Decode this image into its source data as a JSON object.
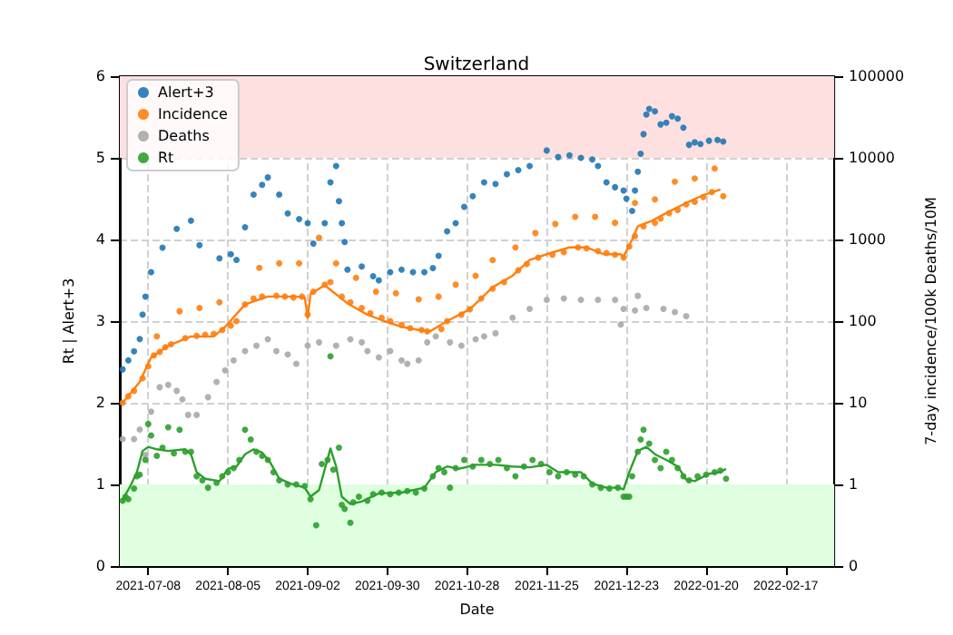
{
  "chart_data": {
    "type": "scatter",
    "title": "Switzerland",
    "xlabel": "Date",
    "ylabel": "Rt | Alert+3",
    "y2label": "7-day incidence/100k Deaths/10M",
    "xlim": [
      "2021-06-28",
      "2022-03-06"
    ],
    "xticks": [
      "2021-07-08",
      "2021-08-05",
      "2021-09-02",
      "2021-09-30",
      "2021-10-28",
      "2021-11-25",
      "2021-12-23",
      "2022-01-20",
      "2022-02-17"
    ],
    "ylim": [
      0,
      6
    ],
    "yticks": [
      0,
      1,
      2,
      3,
      4,
      5,
      6
    ],
    "y2lim": [
      0.1,
      100000
    ],
    "y2ticks": [
      {
        "value": 0.1,
        "label": "0"
      },
      1,
      10,
      100,
      1000,
      10000,
      100000
    ],
    "log": "y2",
    "grid": true,
    "legend": "top left",
    "marker": "circle",
    "bands": [
      {
        "axis": "y",
        "from": 5,
        "to": 6,
        "color": "#ffe0e0"
      },
      {
        "axis": "y",
        "from": 0,
        "to": 1,
        "color": "#e0ffe0"
      }
    ],
    "series": [
      {
        "name": "Alert+3",
        "color": "#1f77b4",
        "axis": "y",
        "x": [
          "2021-06-29",
          "2021-07-01",
          "2021-07-03",
          "2021-07-05",
          "2021-07-06",
          "2021-07-07",
          "2021-07-09",
          "2021-07-13",
          "2021-07-18",
          "2021-07-23",
          "2021-07-26",
          "2021-08-02",
          "2021-08-06",
          "2021-08-08",
          "2021-08-11",
          "2021-08-14",
          "2021-08-17",
          "2021-08-19",
          "2021-08-23",
          "2021-08-26",
          "2021-08-30",
          "2021-09-02",
          "2021-09-04",
          "2021-09-08",
          "2021-09-10",
          "2021-09-12",
          "2021-09-13",
          "2021-09-14",
          "2021-09-15",
          "2021-09-16",
          "2021-09-21",
          "2021-09-25",
          "2021-09-27",
          "2021-10-01",
          "2021-10-05",
          "2021-10-09",
          "2021-10-13",
          "2021-10-16",
          "2021-10-18",
          "2021-10-21",
          "2021-10-24",
          "2021-10-27",
          "2021-10-30",
          "2021-11-03",
          "2021-11-07",
          "2021-11-11",
          "2021-11-15",
          "2021-11-19",
          "2021-11-25",
          "2021-11-29",
          "2021-12-03",
          "2021-12-07",
          "2021-12-11",
          "2021-12-13",
          "2021-12-16",
          "2021-12-19",
          "2021-12-22",
          "2021-12-23",
          "2021-12-25",
          "2021-12-26",
          "2021-12-27",
          "2021-12-28",
          "2021-12-29",
          "2021-12-30",
          "2021-12-31",
          "2022-01-02",
          "2022-01-04",
          "2022-01-06",
          "2022-01-08",
          "2022-01-10",
          "2022-01-12",
          "2022-01-14",
          "2022-01-16",
          "2022-01-18",
          "2022-01-21",
          "2022-01-24",
          "2022-01-26"
        ],
        "values": [
          2.41,
          2.52,
          2.63,
          2.78,
          3.08,
          3.3,
          3.6,
          3.9,
          4.13,
          4.23,
          3.93,
          3.77,
          3.82,
          3.75,
          4.15,
          4.55,
          4.67,
          4.76,
          4.55,
          4.32,
          4.25,
          4.2,
          3.95,
          4.2,
          4.7,
          4.9,
          4.47,
          4.2,
          3.97,
          3.63,
          3.67,
          3.55,
          3.5,
          3.6,
          3.63,
          3.6,
          3.6,
          3.65,
          3.8,
          4.1,
          4.2,
          4.4,
          4.53,
          4.7,
          4.68,
          4.8,
          4.85,
          4.9,
          5.09,
          5.01,
          5.03,
          5.0,
          4.98,
          4.9,
          4.7,
          4.64,
          4.6,
          4.5,
          4.35,
          4.6,
          4.83,
          5.05,
          5.29,
          5.53,
          5.6,
          5.57,
          5.41,
          5.43,
          5.51,
          5.48,
          5.37,
          5.16,
          5.19,
          5.17,
          5.21,
          5.22,
          5.2
        ]
      },
      {
        "name": "Incidence",
        "color": "#ff7f0e",
        "axis": "y2",
        "x": [
          "2021-06-29",
          "2021-07-01",
          "2021-07-03",
          "2021-07-06",
          "2021-07-08",
          "2021-07-10",
          "2021-07-12",
          "2021-07-14",
          "2021-07-16",
          "2021-07-21",
          "2021-07-25",
          "2021-07-28",
          "2021-07-31",
          "2021-08-03",
          "2021-08-06",
          "2021-08-08",
          "2021-08-11",
          "2021-08-14",
          "2021-08-17",
          "2021-08-22",
          "2021-08-25",
          "2021-08-28",
          "2021-08-31",
          "2021-09-02",
          "2021-09-04",
          "2021-09-08",
          "2021-09-10",
          "2021-09-14",
          "2021-09-17",
          "2021-09-21",
          "2021-09-24",
          "2021-09-28",
          "2021-10-01",
          "2021-10-05",
          "2021-10-08",
          "2021-10-12",
          "2021-10-14",
          "2021-10-19",
          "2021-10-21",
          "2021-10-26",
          "2021-10-29",
          "2021-11-02",
          "2021-11-06",
          "2021-11-10",
          "2021-11-15",
          "2021-11-18",
          "2021-11-22",
          "2021-11-27",
          "2021-12-01",
          "2021-12-06",
          "2021-12-09",
          "2021-12-13",
          "2021-12-16",
          "2021-12-19",
          "2021-12-22",
          "2021-12-24",
          "2021-12-26",
          "2021-12-29",
          "2022-01-02",
          "2022-01-04",
          "2022-01-07",
          "2022-01-10",
          "2022-01-13",
          "2022-01-16",
          "2022-01-19",
          "2022-01-22",
          "2022-01-26",
          "2021-07-11",
          "2021-07-19",
          "2021-07-26",
          "2021-08-02",
          "2021-08-16",
          "2021-08-23",
          "2021-08-30",
          "2021-09-06",
          "2021-09-12",
          "2021-09-19",
          "2021-09-26",
          "2021-10-03",
          "2021-10-11",
          "2021-10-18",
          "2021-10-24",
          "2021-10-31",
          "2021-11-06",
          "2021-11-14",
          "2021-11-21",
          "2021-11-28",
          "2021-12-05",
          "2021-12-12",
          "2021-12-19",
          "2021-12-26",
          "2022-01-02",
          "2022-01-09",
          "2022-01-16",
          "2022-01-23"
        ],
        "values": [
          10,
          12,
          14,
          20,
          28,
          38,
          42,
          48,
          52,
          62,
          66,
          68,
          70,
          78,
          88,
          100,
          160,
          190,
          200,
          205,
          200,
          195,
          200,
          120,
          230,
          280,
          300,
          200,
          170,
          145,
          125,
          110,
          100,
          90,
          82,
          78,
          75,
          80,
          100,
          120,
          140,
          190,
          250,
          300,
          420,
          500,
          600,
          650,
          700,
          800,
          780,
          720,
          680,
          650,
          600,
          820,
          1100,
          1450,
          1600,
          1800,
          2100,
          2300,
          2700,
          2900,
          3300,
          3800,
          3400,
          65,
          132,
          145,
          170,
          450,
          510,
          510,
          1050,
          510,
          340,
          230,
          220,
          185,
          200,
          280,
          360,
          560,
          800,
          1200,
          1550,
          1900,
          1900,
          1600,
          2800,
          3100,
          5100,
          5600,
          7400
        ]
      },
      {
        "name": "Deaths",
        "color": "#a9a9a9",
        "axis": "y2",
        "x": [
          "2021-06-29",
          "2021-07-03",
          "2021-07-05",
          "2021-07-07",
          "2021-07-09",
          "2021-07-12",
          "2021-07-15",
          "2021-07-18",
          "2021-07-20",
          "2021-07-22",
          "2021-07-25",
          "2021-07-29",
          "2021-08-01",
          "2021-08-04",
          "2021-08-07",
          "2021-08-11",
          "2021-08-15",
          "2021-08-19",
          "2021-08-22",
          "2021-08-26",
          "2021-08-29",
          "2021-09-02",
          "2021-09-06",
          "2021-09-12",
          "2021-09-17",
          "2021-09-21",
          "2021-09-23",
          "2021-09-27",
          "2021-10-01",
          "2021-10-05",
          "2021-10-07",
          "2021-10-11",
          "2021-10-14",
          "2021-10-17",
          "2021-10-22",
          "2021-10-26",
          "2021-10-31",
          "2021-11-03",
          "2021-11-07",
          "2021-11-13",
          "2021-11-19",
          "2021-11-25",
          "2021-12-01",
          "2021-12-07",
          "2021-12-13",
          "2021-12-19",
          "2021-12-21",
          "2021-12-22",
          "2021-12-26",
          "2021-12-27",
          "2021-12-30",
          "2022-01-05",
          "2022-01-09",
          "2022-01-13"
        ],
        "values": [
          3.6,
          3.6,
          4.7,
          2.3,
          7.8,
          15.5,
          16.6,
          14,
          11,
          7.1,
          7.1,
          11.7,
          18,
          25,
          33,
          43,
          50,
          60,
          43,
          39,
          30,
          50,
          55,
          50,
          60,
          55,
          43,
          36,
          43,
          33,
          30,
          33,
          55,
          65,
          55,
          50,
          60,
          65,
          71,
          110,
          141,
          182,
          190,
          182,
          182,
          182,
          91,
          141,
          135,
          204,
          145,
          141,
          129,
          115
        ]
      },
      {
        "name": "Rt",
        "color": "#2ca02c",
        "axis": "y",
        "x": [
          "2021-06-29",
          "2021-06-30",
          "2021-07-01",
          "2021-07-03",
          "2021-07-04",
          "2021-07-05",
          "2021-07-07",
          "2021-07-08",
          "2021-07-09",
          "2021-07-11",
          "2021-07-13",
          "2021-07-15",
          "2021-07-17",
          "2021-07-19",
          "2021-07-21",
          "2021-07-23",
          "2021-07-25",
          "2021-07-27",
          "2021-07-29",
          "2021-08-01",
          "2021-08-03",
          "2021-08-05",
          "2021-08-07",
          "2021-08-09",
          "2021-08-11",
          "2021-08-13",
          "2021-08-15",
          "2021-08-17",
          "2021-08-19",
          "2021-08-21",
          "2021-08-23",
          "2021-08-26",
          "2021-08-29",
          "2021-09-01",
          "2021-09-03",
          "2021-09-05",
          "2021-09-07",
          "2021-09-09",
          "2021-09-10",
          "2021-09-11",
          "2021-09-13",
          "2021-09-14",
          "2021-09-15",
          "2021-09-17",
          "2021-09-18",
          "2021-09-20",
          "2021-09-23",
          "2021-09-25",
          "2021-09-28",
          "2021-10-01",
          "2021-10-04",
          "2021-10-07",
          "2021-10-10",
          "2021-10-13",
          "2021-10-16",
          "2021-10-18",
          "2021-10-20",
          "2021-10-22",
          "2021-10-24",
          "2021-10-27",
          "2021-10-30",
          "2021-11-02",
          "2021-11-05",
          "2021-11-08",
          "2021-11-11",
          "2021-11-14",
          "2021-11-17",
          "2021-11-20",
          "2021-11-23",
          "2021-11-26",
          "2021-11-29",
          "2021-12-02",
          "2021-12-05",
          "2021-12-08",
          "2021-12-11",
          "2021-12-14",
          "2021-12-17",
          "2021-12-20",
          "2021-12-22",
          "2021-12-23",
          "2021-12-24",
          "2021-12-25",
          "2021-12-27",
          "2021-12-28",
          "2021-12-29",
          "2021-12-31",
          "2022-01-02",
          "2022-01-04",
          "2022-01-06",
          "2022-01-08",
          "2022-01-10",
          "2022-01-12",
          "2022-01-14",
          "2022-01-17",
          "2022-01-20",
          "2022-01-23",
          "2022-01-25",
          "2022-01-27"
        ],
        "values": [
          0.8,
          0.85,
          0.82,
          0.95,
          1.1,
          1.12,
          1.3,
          1.74,
          1.6,
          1.35,
          1.45,
          1.7,
          1.38,
          1.67,
          1.4,
          1.4,
          1.1,
          1.05,
          0.96,
          1.02,
          1.1,
          1.15,
          1.2,
          1.3,
          1.67,
          1.55,
          1.4,
          1.35,
          1.3,
          1.15,
          1.05,
          1.0,
          1.0,
          0.98,
          0.82,
          0.5,
          1.25,
          1.3,
          2.57,
          1.18,
          1.45,
          0.75,
          0.7,
          0.53,
          0.78,
          0.85,
          0.8,
          0.88,
          0.9,
          0.88,
          0.9,
          0.92,
          0.9,
          0.95,
          1.1,
          1.2,
          1.15,
          0.96,
          1.2,
          1.3,
          1.22,
          1.3,
          1.25,
          1.3,
          1.2,
          1.1,
          1.22,
          1.3,
          1.25,
          1.15,
          1.1,
          1.15,
          1.12,
          1.1,
          1.0,
          0.96,
          0.95,
          0.96,
          0.85,
          0.85,
          0.85,
          1.1,
          1.4,
          1.55,
          1.67,
          1.5,
          1.3,
          1.2,
          1.4,
          1.3,
          1.2,
          1.1,
          1.05,
          1.1,
          1.12,
          1.15,
          1.17,
          1.07
        ]
      },
      {
        "type": "line",
        "color": "#ff7f0e",
        "axis": "y2",
        "marker": "none",
        "x": [
          "2021-06-29",
          "2021-07-05",
          "2021-07-09",
          "2021-07-15",
          "2021-07-23",
          "2021-07-31",
          "2021-08-04",
          "2021-08-11",
          "2021-08-19",
          "2021-08-29",
          "2021-09-01",
          "2021-09-02",
          "2021-09-03",
          "2021-09-08",
          "2021-09-16",
          "2021-09-23",
          "2021-09-29",
          "2021-10-05",
          "2021-10-11",
          "2021-10-15",
          "2021-10-21",
          "2021-10-29",
          "2021-11-06",
          "2021-11-13",
          "2021-11-19",
          "2021-11-25",
          "2021-12-03",
          "2021-12-09",
          "2021-12-15",
          "2021-12-21",
          "2021-12-22",
          "2021-12-25",
          "2021-12-27",
          "2022-01-01",
          "2022-01-07",
          "2022-01-13",
          "2022-01-19",
          "2022-01-25"
        ],
        "values": [
          10,
          18,
          36,
          50,
          65,
          65,
          85,
          160,
          200,
          200,
          195,
          110,
          215,
          275,
          165,
          120,
          100,
          85,
          78,
          75,
          100,
          140,
          260,
          360,
          560,
          660,
          800,
          800,
          660,
          660,
          620,
          1000,
          1450,
          1700,
          2200,
          2800,
          3500,
          4100
        ]
      },
      {
        "type": "line",
        "color": "#2ca02c",
        "axis": "y",
        "marker": "none",
        "x": [
          "2021-06-29",
          "2021-07-02",
          "2021-07-04",
          "2021-07-06",
          "2021-07-08",
          "2021-07-11",
          "2021-07-15",
          "2021-07-21",
          "2021-07-23",
          "2021-07-25",
          "2021-07-28",
          "2021-08-02",
          "2021-08-05",
          "2021-08-08",
          "2021-08-11",
          "2021-08-14",
          "2021-08-17",
          "2021-08-20",
          "2021-08-23",
          "2021-08-27",
          "2021-09-01",
          "2021-09-03",
          "2021-09-06",
          "2021-09-10",
          "2021-09-12",
          "2021-09-14",
          "2021-09-17",
          "2021-09-21",
          "2021-09-27",
          "2021-10-05",
          "2021-10-13",
          "2021-10-17",
          "2021-10-21",
          "2021-10-25",
          "2021-10-31",
          "2021-11-07",
          "2021-11-13",
          "2021-11-19",
          "2021-11-25",
          "2021-11-29",
          "2021-12-03",
          "2021-12-07",
          "2021-12-11",
          "2021-12-16",
          "2021-12-20",
          "2021-12-22",
          "2021-12-24",
          "2021-12-27",
          "2021-12-30",
          "2022-01-02",
          "2022-01-06",
          "2022-01-10",
          "2022-01-13",
          "2022-01-16",
          "2022-01-21",
          "2022-01-25",
          "2022-01-27"
        ],
        "values": [
          0.81,
          1.0,
          1.15,
          1.41,
          1.46,
          1.43,
          1.41,
          1.43,
          1.37,
          1.15,
          1.07,
          1.04,
          1.19,
          1.22,
          1.37,
          1.43,
          1.39,
          1.26,
          1.07,
          1.01,
          0.96,
          0.85,
          0.93,
          1.44,
          1.22,
          0.85,
          0.76,
          0.79,
          0.89,
          0.9,
          0.96,
          1.15,
          1.22,
          1.19,
          1.24,
          1.24,
          1.22,
          1.21,
          1.24,
          1.15,
          1.15,
          1.15,
          1.01,
          0.96,
          0.96,
          0.94,
          1.15,
          1.41,
          1.46,
          1.37,
          1.3,
          1.22,
          1.06,
          1.04,
          1.13,
          1.15,
          1.19
        ]
      }
    ]
  }
}
